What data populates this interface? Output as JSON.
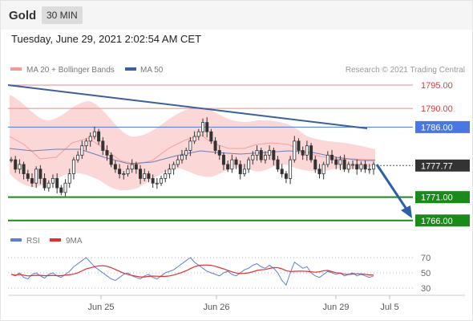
{
  "header": {
    "symbol": "Gold",
    "timeframe": "30 MIN",
    "datetime": "Tuesday, June 29, 2021 2:02:54 AM CET"
  },
  "legend": {
    "ma20_label": "MA 20 + Bollinger Bands",
    "ma50_label": "MA 50",
    "copyright": "Research © 2021 Trading Central",
    "rsi_label": "RSI",
    "ma9_label": "9MA"
  },
  "colors": {
    "resistance": "#e88a8a",
    "support": "#1a8a1a",
    "pivot": "#4a78e0",
    "trendline": "#3d5f9a",
    "arrow": "#2d5fa8",
    "band": "#fbd0d0",
    "candle": "#333333",
    "rsi": "#5b7fd6",
    "rsi_ma": "#e03030",
    "current": "#333333"
  },
  "chart_data": {
    "type": "candlestick",
    "x_tick_labels": [
      "Jun 25",
      "Jun 26",
      "Jun 29",
      "Jul 5"
    ],
    "y_range": [
      1760,
      1800
    ],
    "levels": [
      {
        "value": 1795.0,
        "label": "1795.00",
        "kind": "resistance"
      },
      {
        "value": 1790.0,
        "label": "1790.00",
        "kind": "resistance"
      },
      {
        "value": 1786.0,
        "label": "1786.00",
        "kind": "pivot"
      },
      {
        "value": 1777.77,
        "label": "1777.77",
        "kind": "current"
      },
      {
        "value": 1771.0,
        "label": "1771.00",
        "kind": "support"
      },
      {
        "value": 1766.0,
        "label": "1766.00",
        "kind": "support"
      }
    ],
    "price_closes": [
      1779,
      1777,
      1778,
      1776,
      1775,
      1774,
      1777,
      1775,
      1773,
      1774,
      1775,
      1773,
      1772,
      1774,
      1776,
      1779,
      1780,
      1782,
      1783,
      1784,
      1785,
      1783,
      1781,
      1780,
      1778,
      1777,
      1776,
      1776,
      1777,
      1778,
      1777,
      1775,
      1776,
      1775,
      1774,
      1774,
      1775,
      1776,
      1777,
      1778,
      1779,
      1780,
      1781,
      1783,
      1784,
      1785,
      1787,
      1785,
      1783,
      1781,
      1780,
      1778,
      1777,
      1779,
      1778,
      1776,
      1777,
      1779,
      1780,
      1781,
      1779,
      1780,
      1781,
      1779,
      1777,
      1776,
      1775,
      1779,
      1783,
      1781,
      1780,
      1782,
      1779,
      1777,
      1776,
      1778,
      1780,
      1779,
      1778,
      1779,
      1777,
      1778,
      1778,
      1777,
      1778,
      1777,
      1777,
      1778
    ],
    "rsi_y_ticks": [
      70,
      50,
      30
    ],
    "rsi_values": [
      48,
      46,
      50,
      44,
      42,
      48,
      50,
      46,
      43,
      48,
      50,
      46,
      44,
      48,
      52,
      58,
      62,
      66,
      70,
      64,
      58,
      54,
      50,
      46,
      42,
      40,
      44,
      48,
      50,
      46,
      44,
      42,
      46,
      48,
      44,
      42,
      46,
      50,
      52,
      54,
      58,
      62,
      66,
      70,
      64,
      60,
      56,
      52,
      50,
      48,
      46,
      50,
      52,
      48,
      46,
      50,
      54,
      56,
      60,
      62,
      58,
      56,
      60,
      56,
      50,
      40,
      34,
      50,
      64,
      60,
      56,
      58,
      50,
      46,
      44,
      48,
      52,
      50,
      48,
      50,
      46,
      48,
      50,
      46,
      48,
      46,
      44,
      46
    ]
  }
}
